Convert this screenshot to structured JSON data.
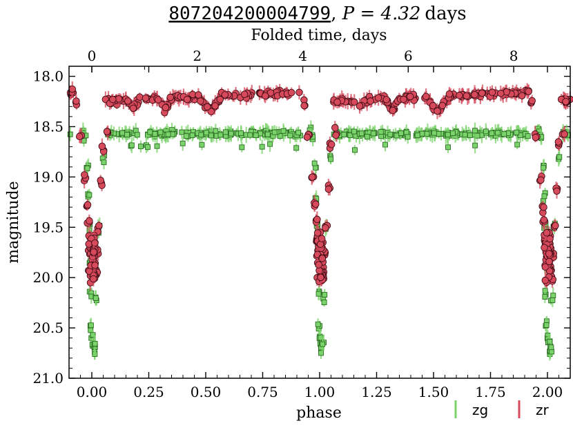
{
  "chart_data": {
    "type": "scatter",
    "title": {
      "object_id": "807204200004799",
      "separator": ", ",
      "period_text": "P = 4.32",
      "period_unit": "days"
    },
    "xlabel": "phase",
    "ylabel": "magnitude",
    "top_xlabel": "Folded time, days",
    "period_days": 4.32,
    "xlim": [
      -0.1,
      2.1
    ],
    "ylim": [
      21.0,
      17.9
    ],
    "y_inverted": true,
    "x_ticks": [
      0.0,
      0.25,
      0.5,
      0.75,
      1.0,
      1.25,
      1.5,
      1.75,
      2.0
    ],
    "x_tick_labels": [
      "0.00",
      "0.25",
      "0.50",
      "0.75",
      "1.00",
      "1.25",
      "1.50",
      "1.75",
      "2.00"
    ],
    "y_ticks": [
      18.0,
      18.5,
      19.0,
      19.5,
      20.0,
      20.5,
      21.0
    ],
    "y_tick_labels": [
      "18.0",
      "18.5",
      "19.0",
      "19.5",
      "20.0",
      "20.5",
      "21.0"
    ],
    "top_x_ticks_days": [
      0,
      2,
      4,
      6,
      8
    ],
    "top_x_tick_labels": [
      "0",
      "2",
      "4",
      "6",
      "8"
    ],
    "legend_position": "bottom-right, outside plot",
    "grid": false,
    "series": [
      {
        "name": "zg",
        "color": "#7bd36b",
        "edge": "#2a6b22",
        "marker": "square",
        "baseline_mag": 18.57,
        "eclipse": [
          [
            -0.04,
            18.55
          ],
          [
            -0.03,
            18.6
          ],
          [
            -0.02,
            18.9
          ],
          [
            -0.015,
            19.2
          ],
          [
            -0.012,
            19.5
          ],
          [
            -0.008,
            19.85
          ],
          [
            -0.006,
            20.15
          ],
          [
            -0.004,
            20.48
          ],
          [
            0.0,
            20.6
          ],
          [
            0.006,
            20.65
          ],
          [
            0.01,
            20.72
          ],
          [
            0.014,
            20.68
          ],
          [
            0.02,
            20.2
          ],
          [
            0.03,
            19.5
          ],
          [
            0.05,
            18.8
          ]
        ]
      },
      {
        "name": "zr",
        "color": "#d64a5c",
        "edge": "#3a0a12",
        "marker": "circle",
        "baseline_mag": 18.2,
        "eclipse": [
          [
            -0.07,
            18.25
          ],
          [
            -0.05,
            18.6
          ],
          [
            -0.03,
            19.0
          ],
          [
            -0.02,
            19.3
          ],
          [
            -0.015,
            19.45
          ],
          [
            -0.01,
            19.6
          ],
          [
            -0.005,
            19.75
          ],
          [
            0.0,
            19.8
          ],
          [
            0.005,
            19.85
          ],
          [
            0.01,
            19.9
          ],
          [
            0.015,
            19.95
          ],
          [
            0.02,
            20.0
          ],
          [
            0.025,
            19.75
          ],
          [
            0.03,
            19.5
          ],
          [
            0.04,
            19.1
          ],
          [
            0.05,
            18.7
          ],
          [
            0.07,
            18.55
          ]
        ]
      }
    ]
  }
}
